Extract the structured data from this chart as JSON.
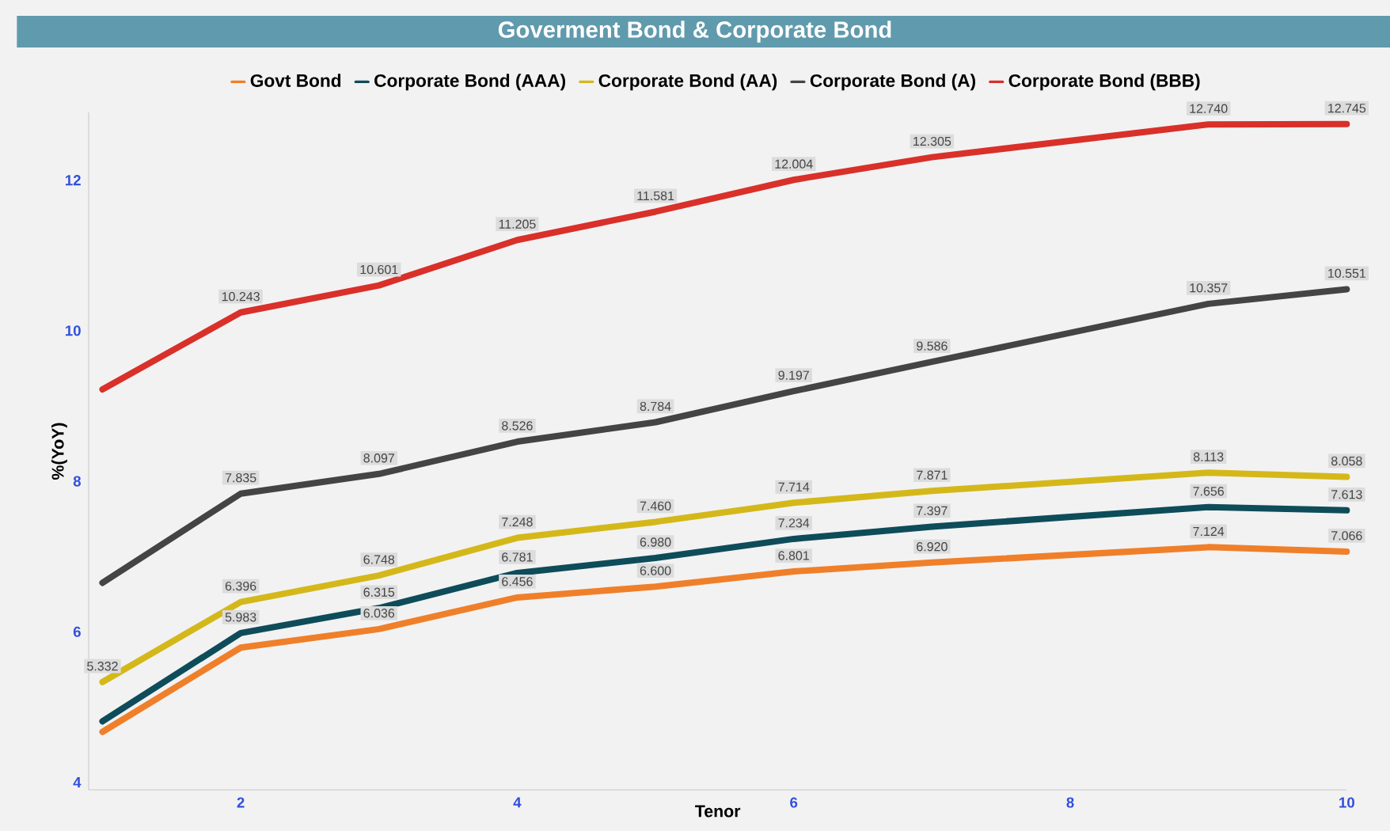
{
  "chart_data": {
    "type": "line",
    "title": "Goverment Bond & Corporate Bond",
    "xlabel": "Tenor",
    "ylabel": "%(YoY)",
    "x": [
      1,
      2,
      3,
      4,
      5,
      6,
      7,
      9,
      10
    ],
    "xlim": [
      0.9,
      10
    ],
    "xticks": [
      2,
      4,
      6,
      8,
      10
    ],
    "ylim": [
      3.9,
      12.9
    ],
    "yticks": [
      4,
      6,
      8,
      10,
      12
    ],
    "legend": "top",
    "grid": false,
    "marker": "none",
    "line_style": "solid",
    "series": [
      {
        "name": "Govt Bond",
        "color": "#f07f2a",
        "values": [
          4.67,
          5.79,
          6.036,
          6.456,
          6.6,
          6.801,
          6.92,
          7.124,
          7.066
        ],
        "value_labels": [
          null,
          null,
          "6.036",
          "6.456",
          "6.600",
          "6.801",
          "6.920",
          "7.124",
          "7.066"
        ]
      },
      {
        "name": "Corporate Bond (AAA)",
        "color": "#0e4c5a",
        "values": [
          4.81,
          5.983,
          6.315,
          6.781,
          6.98,
          7.234,
          7.397,
          7.656,
          7.613
        ],
        "value_labels": [
          null,
          "5.983",
          "6.315",
          "6.781",
          "6.980",
          "7.234",
          "7.397",
          "7.656",
          "7.613"
        ]
      },
      {
        "name": "Corporate Bond (AA)",
        "color": "#d4b81a",
        "values": [
          5.332,
          6.396,
          6.748,
          7.248,
          7.46,
          7.714,
          7.871,
          8.113,
          8.058
        ],
        "value_labels": [
          "5.332",
          "6.396",
          "6.748",
          "7.248",
          "7.460",
          "7.714",
          "7.871",
          "8.113",
          "8.058"
        ]
      },
      {
        "name": "Corporate Bond (A)",
        "color": "#444444",
        "values": [
          6.65,
          7.835,
          8.097,
          8.526,
          8.784,
          9.197,
          9.586,
          10.357,
          10.551
        ],
        "value_labels": [
          null,
          "7.835",
          "8.097",
          "8.526",
          "8.784",
          "9.197",
          "9.586",
          "10.357",
          "10.551"
        ]
      },
      {
        "name": "Corporate Bond (BBB)",
        "color": "#d9302a",
        "values": [
          9.22,
          10.243,
          10.601,
          11.205,
          11.581,
          12.004,
          12.305,
          12.74,
          12.745
        ],
        "value_labels": [
          null,
          "10.243",
          "10.601",
          "11.205",
          "11.581",
          "12.004",
          "12.305",
          "12.740",
          "12.745"
        ]
      }
    ]
  }
}
